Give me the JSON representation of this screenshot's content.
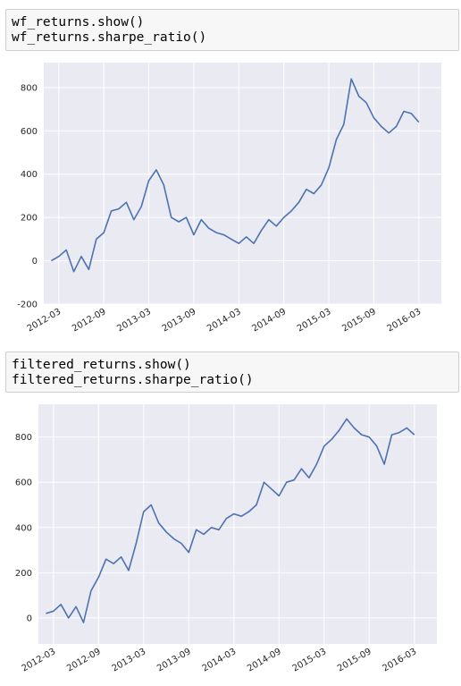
{
  "cells": [
    {
      "lines": [
        "wf_returns.show()",
        "wf_returns.sharpe_ratio()"
      ]
    },
    {
      "lines": [
        "filtered_returns.show()",
        "filtered_returns.sharpe_ratio()"
      ]
    }
  ],
  "chart_data": [
    {
      "type": "line",
      "color": "#4c72b0",
      "grid": true,
      "x": [
        "2012-02",
        "2012-03",
        "2012-04",
        "2012-05",
        "2012-06",
        "2012-07",
        "2012-08",
        "2012-09",
        "2012-10",
        "2012-11",
        "2012-12",
        "2013-01",
        "2013-02",
        "2013-03",
        "2013-04",
        "2013-05",
        "2013-06",
        "2013-07",
        "2013-08",
        "2013-09",
        "2013-10",
        "2013-11",
        "2013-12",
        "2014-01",
        "2014-02",
        "2014-03",
        "2014-04",
        "2014-05",
        "2014-06",
        "2014-07",
        "2014-08",
        "2014-09",
        "2014-10",
        "2014-11",
        "2014-12",
        "2015-01",
        "2015-02",
        "2015-03",
        "2015-04",
        "2015-05",
        "2015-06",
        "2015-07",
        "2015-08",
        "2015-09",
        "2015-10",
        "2015-11",
        "2015-12",
        "2016-01",
        "2016-02",
        "2016-03"
      ],
      "values": [
        0,
        20,
        50,
        -50,
        20,
        -40,
        100,
        130,
        230,
        240,
        270,
        190,
        250,
        370,
        420,
        350,
        200,
        180,
        200,
        120,
        190,
        150,
        130,
        120,
        100,
        80,
        110,
        80,
        140,
        190,
        160,
        200,
        230,
        270,
        330,
        310,
        350,
        430,
        560,
        630,
        840,
        760,
        730,
        660,
        620,
        590,
        620,
        690,
        680,
        640
      ],
      "xlim": [
        "2012-01",
        "2016-06"
      ],
      "xticks": [
        "2012-03",
        "2012-09",
        "2013-03",
        "2013-09",
        "2014-03",
        "2014-09",
        "2015-03",
        "2015-09",
        "2016-03"
      ],
      "ylim": [
        -200,
        915
      ],
      "yticks": [
        -200,
        0,
        200,
        400,
        600,
        800
      ]
    },
    {
      "type": "line",
      "color": "#4c72b0",
      "grid": true,
      "x": [
        "2012-02",
        "2012-03",
        "2012-04",
        "2012-05",
        "2012-06",
        "2012-07",
        "2012-08",
        "2012-09",
        "2012-10",
        "2012-11",
        "2012-12",
        "2013-01",
        "2013-02",
        "2013-03",
        "2013-04",
        "2013-05",
        "2013-06",
        "2013-07",
        "2013-08",
        "2013-09",
        "2013-10",
        "2013-11",
        "2013-12",
        "2014-01",
        "2014-02",
        "2014-03",
        "2014-04",
        "2014-05",
        "2014-06",
        "2014-07",
        "2014-08",
        "2014-09",
        "2014-10",
        "2014-11",
        "2014-12",
        "2015-01",
        "2015-02",
        "2015-03",
        "2015-04",
        "2015-05",
        "2015-06",
        "2015-07",
        "2015-08",
        "2015-09",
        "2015-10",
        "2015-11",
        "2015-12",
        "2016-01",
        "2016-02",
        "2016-03"
      ],
      "values": [
        20,
        30,
        60,
        0,
        50,
        -20,
        120,
        180,
        260,
        240,
        270,
        210,
        330,
        470,
        500,
        420,
        380,
        350,
        330,
        290,
        390,
        370,
        400,
        390,
        440,
        460,
        450,
        470,
        500,
        600,
        570,
        540,
        600,
        610,
        660,
        620,
        680,
        760,
        790,
        830,
        880,
        840,
        810,
        800,
        760,
        680,
        810,
        820,
        840,
        810
      ],
      "xlim": [
        "2012-01",
        "2016-06"
      ],
      "xticks": [
        "2012-03",
        "2012-09",
        "2013-03",
        "2013-09",
        "2014-03",
        "2014-09",
        "2015-03",
        "2015-09",
        "2016-03"
      ],
      "ylim": [
        -115,
        945
      ],
      "yticks": [
        0,
        200,
        400,
        600,
        800
      ]
    }
  ]
}
